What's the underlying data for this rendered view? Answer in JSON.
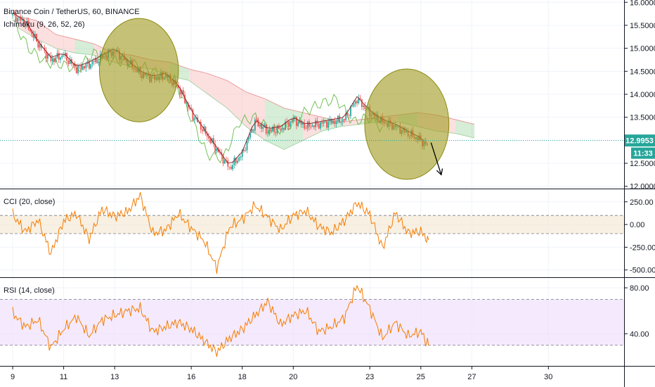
{
  "header": {
    "symbol_title": "Binance Coin / TetherUS, 60, BINANCE",
    "ichimoku_label": "Ichimoku (9, 26, 52, 26)"
  },
  "price_badge": {
    "value": "12.9953",
    "countdown": "11:33",
    "color": "#26a69a"
  },
  "colors": {
    "candle_up": "#26a69a",
    "candle_down": "#ef5350",
    "ichimoku_lagging": "#66bb47",
    "ichimoku_base": "#8e1b23",
    "cloud_bull": "#a5d6a7",
    "cloud_bear": "#f8bbbb",
    "circle_fill": "#9e9a1c",
    "cci_line": "#f57c00",
    "cci_band": "#f4e6cf",
    "rsi_line": "#f57c00",
    "rsi_band": "#eedcfc",
    "grid": "#f0f3fa",
    "axis_border": "#131722"
  },
  "chart_data": [
    {
      "type": "line",
      "title": "Binance Coin / TetherUS, 60, BINANCE",
      "xlabel": "",
      "ylabel": "",
      "x_ticks": [
        "9",
        "11",
        "13",
        "16",
        "18",
        "20",
        "23",
        "25",
        "27",
        "30"
      ],
      "x_tick_day_index": [
        0,
        2,
        4,
        7,
        9,
        11,
        14,
        16,
        18,
        21
      ],
      "y_ticks": [
        "16.0000",
        "15.5000",
        "15.0000",
        "14.5000",
        "14.0000",
        "13.5000",
        "13.0000",
        "12.5000",
        "12.0000"
      ],
      "ylim": [
        11.95,
        16.05
      ],
      "xlim_days": [
        -0.1,
        24.1
      ],
      "grid": true,
      "current_price": 12.9953,
      "price_series_approx": {
        "x_days": [
          0,
          0.5,
          1,
          1.5,
          2,
          2.5,
          3,
          3.5,
          4,
          4.5,
          5,
          5.5,
          6,
          6.5,
          7,
          7.5,
          8,
          8.5,
          9,
          9.5,
          10,
          10.5,
          11,
          11.5,
          12,
          12.5,
          13,
          13.5,
          14,
          14.5,
          15,
          15.5,
          16,
          16.3
        ],
        "close": [
          15.72,
          15.55,
          15.1,
          14.75,
          14.85,
          14.55,
          14.65,
          14.8,
          14.95,
          14.7,
          14.45,
          14.35,
          14.4,
          14.15,
          13.6,
          13.2,
          12.8,
          12.4,
          12.7,
          13.4,
          13.2,
          13.25,
          13.45,
          13.3,
          13.35,
          13.4,
          13.45,
          13.9,
          13.6,
          13.4,
          13.3,
          13.15,
          13.0,
          12.85
        ]
      },
      "ichimoku": {
        "lagging_span_approx": [
          15.6,
          15.0,
          14.7,
          14.65,
          14.55,
          14.9,
          14.75,
          14.7,
          14.6,
          14.45,
          14.3,
          13.5,
          12.7,
          12.6,
          13.4,
          13.5,
          13.2,
          13.3,
          13.6,
          13.8,
          13.9,
          13.4,
          13.5,
          13.2
        ],
        "cloud_top_approx": [
          15.7,
          15.6,
          15.3,
          15.2,
          15.1,
          14.9,
          14.85,
          14.75,
          14.7,
          14.55,
          14.45,
          14.3,
          14.05,
          13.9,
          13.7,
          13.6,
          13.5,
          13.4,
          13.45,
          13.5,
          13.55,
          13.6,
          13.55,
          13.45,
          13.35
        ],
        "cloud_bottom_approx": [
          15.45,
          15.2,
          15.0,
          14.9,
          14.85,
          14.7,
          14.6,
          14.55,
          14.4,
          14.3,
          14.0,
          13.7,
          13.3,
          13.0,
          12.8,
          13.0,
          13.2,
          13.3,
          13.35,
          13.4,
          13.4,
          13.3,
          13.2,
          13.15,
          13.05
        ]
      },
      "annotations": {
        "circles_day_range": [
          [
            3.4,
            6.5
          ],
          [
            13.8,
            17.1
          ]
        ],
        "circles_price_range": [
          [
            13.4,
            15.65
          ],
          [
            12.15,
            14.55
          ]
        ],
        "arrow_from": [
          16.4,
          12.95
        ],
        "arrow_to": [
          16.8,
          12.25
        ]
      }
    },
    {
      "type": "line",
      "title": "CCI (20, close)",
      "y_ticks": [
        "250.00",
        "0.00",
        "-250.00",
        "-500.00"
      ],
      "ylim": [
        -580,
        380
      ],
      "band": [
        -100,
        100
      ],
      "grid": true,
      "x_days": [
        0,
        0.5,
        1,
        1.5,
        2,
        2.5,
        3,
        3.5,
        4,
        4.5,
        5,
        5.5,
        6,
        6.5,
        7,
        7.5,
        8,
        8.5,
        9,
        9.5,
        10,
        10.5,
        11,
        11.5,
        12,
        12.5,
        13,
        13.5,
        14,
        14.5,
        15,
        15.5,
        16,
        16.3
      ],
      "values": [
        110,
        -80,
        50,
        -320,
        40,
        120,
        -160,
        170,
        90,
        140,
        320,
        -100,
        -60,
        120,
        -40,
        -180,
        -480,
        -30,
        60,
        210,
        80,
        -60,
        100,
        150,
        -20,
        -90,
        40,
        240,
        110,
        -260,
        130,
        -90,
        -80,
        -170
      ]
    },
    {
      "type": "line",
      "title": "RSI (14, close)",
      "y_ticks": [
        "80.00",
        "40.00"
      ],
      "ylim": [
        12,
        88
      ],
      "band": [
        30,
        70
      ],
      "grid": true,
      "x_days": [
        0,
        0.5,
        1,
        1.5,
        2,
        2.5,
        3,
        3.5,
        4,
        4.5,
        5,
        5.5,
        6,
        6.5,
        7,
        7.5,
        8,
        8.5,
        9,
        9.5,
        10,
        10.5,
        11,
        11.5,
        12,
        12.5,
        13,
        13.5,
        14,
        14.5,
        15,
        15.5,
        16,
        16.3
      ],
      "values": [
        58,
        46,
        52,
        28,
        44,
        55,
        38,
        52,
        56,
        60,
        62,
        42,
        46,
        50,
        44,
        34,
        24,
        36,
        44,
        56,
        68,
        48,
        56,
        60,
        42,
        46,
        54,
        82,
        62,
        36,
        50,
        38,
        42,
        30
      ]
    }
  ]
}
